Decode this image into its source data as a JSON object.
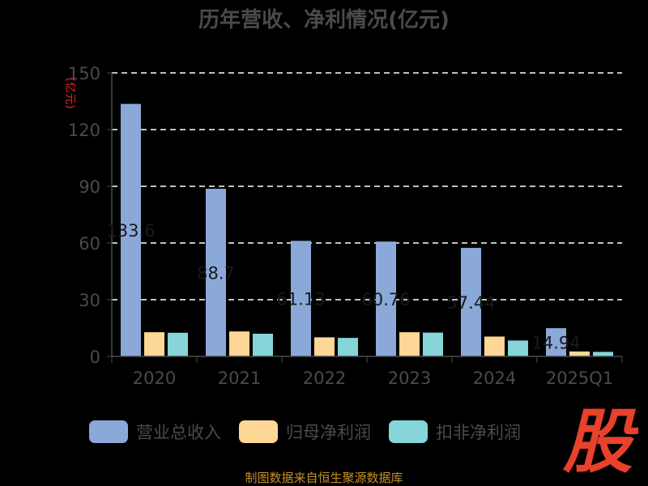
{
  "chart_data": {
    "type": "bar",
    "title": "历年营收、净利情况(亿元)",
    "ylabel": "(亿元)",
    "categories": [
      "2020",
      "2021",
      "2022",
      "2023",
      "2024",
      "2025Q1"
    ],
    "ylim": [
      0,
      150
    ],
    "yticks": [
      0,
      30,
      60,
      90,
      120,
      150
    ],
    "grid": true,
    "legend_position": "bottom",
    "series": [
      {
        "name": "营业总收入",
        "color": "#8aa9d8",
        "values": [
          133.6,
          88.7,
          61.13,
          60.76,
          57.44,
          14.94
        ]
      },
      {
        "name": "归母净利润",
        "color": "#fdd795",
        "values": [
          12.8,
          13.2,
          10.1,
          12.8,
          10.5,
          2.6
        ]
      },
      {
        "name": "扣非净利润",
        "color": "#86d5d8",
        "values": [
          12.5,
          12.0,
          9.8,
          12.6,
          8.4,
          2.4
        ]
      }
    ],
    "data_labels": [
      "133.6",
      "88.7",
      "61.13",
      "60.76",
      "57.44",
      "14.94"
    ]
  },
  "footer": {
    "source": "制图数据来自恒生聚源数据库"
  },
  "logo": {
    "text": "股",
    "color": "#e8412c",
    "icon": "stock-logo"
  }
}
